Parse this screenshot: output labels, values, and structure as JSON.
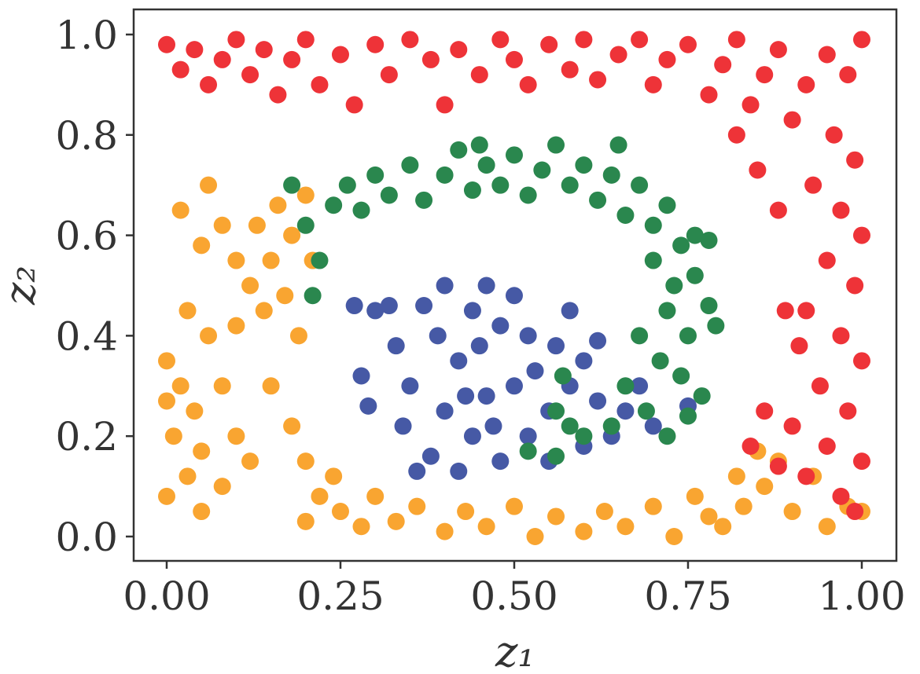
{
  "chart_data": {
    "type": "scatter",
    "xlabel": "z₁",
    "ylabel": "z₂",
    "xlim": [
      -0.0475,
      1.0498
    ],
    "ylim": [
      -0.0485,
      1.05
    ],
    "xticks": [
      {
        "value": 0,
        "label": "0.00"
      },
      {
        "value": 0.25,
        "label": "0.25"
      },
      {
        "value": 0.5,
        "label": "0.50"
      },
      {
        "value": 0.75,
        "label": "0.75"
      },
      {
        "value": 1,
        "label": "1.00"
      }
    ],
    "yticks": [
      {
        "value": 0,
        "label": "0.0"
      },
      0.2,
      0.4,
      0.6,
      0.8,
      {
        "value": 1,
        "label": "1.0"
      }
    ],
    "grid": false,
    "series": [
      {
        "color": "#f9a531",
        "x": [
          0,
          0.02,
          0.01,
          0.03,
          0,
          0.05,
          0.04,
          0.06,
          0.03,
          0.05,
          0.02,
          0.06,
          0.08,
          0.1,
          0.12,
          0.14,
          0.1,
          0.13,
          0.16,
          0.18,
          0.2,
          0.15,
          0.17,
          0.08,
          0.1,
          0.12,
          0.08,
          0.15,
          0.18,
          0.2,
          0.22,
          0.25,
          0.28,
          0.3,
          0.33,
          0.36,
          0.4,
          0.43,
          0.46,
          0.5,
          0.53,
          0.56,
          0.6,
          0.63,
          0.66,
          0.7,
          0.73,
          0.76,
          0.8,
          0.83,
          0.86,
          0.88,
          0.9,
          0.93,
          0.95,
          0.98,
          1,
          0.82,
          0.85,
          0.78,
          0.2,
          0.24,
          0.21,
          0.19,
          0.05,
          0
        ],
        "values": [
          0.35,
          0.3,
          0.2,
          0.12,
          0.08,
          0.05,
          0.25,
          0.4,
          0.45,
          0.58,
          0.65,
          0.7,
          0.62,
          0.55,
          0.5,
          0.45,
          0.42,
          0.62,
          0.66,
          0.6,
          0.68,
          0.55,
          0.48,
          0.3,
          0.2,
          0.15,
          0.1,
          0.3,
          0.22,
          0.15,
          0.08,
          0.05,
          0.02,
          0.08,
          0.03,
          0.06,
          0.01,
          0.05,
          0.02,
          0.06,
          0,
          0.04,
          0.01,
          0.05,
          0.02,
          0.06,
          0,
          0.08,
          0.02,
          0.06,
          0.1,
          0.15,
          0.05,
          0.12,
          0.02,
          0.06,
          0.05,
          0.12,
          0.17,
          0.04,
          0.03,
          0.12,
          0.55,
          0.4,
          0.17,
          0.27
        ]
      },
      {
        "color": "#4659a5",
        "x": [
          0.3,
          0.33,
          0.35,
          0.34,
          0.38,
          0.4,
          0.42,
          0.44,
          0.46,
          0.4,
          0.37,
          0.48,
          0.5,
          0.52,
          0.5,
          0.46,
          0.44,
          0.48,
          0.52,
          0.55,
          0.58,
          0.56,
          0.6,
          0.62,
          0.6,
          0.64,
          0.66,
          0.68,
          0.7,
          0.55,
          0.42,
          0.36,
          0.28,
          0.29,
          0.32,
          0.45,
          0.53,
          0.43,
          0.39,
          0.47,
          0.75,
          0.62,
          0.27,
          0.58
        ],
        "values": [
          0.45,
          0.38,
          0.3,
          0.22,
          0.16,
          0.25,
          0.35,
          0.45,
          0.5,
          0.5,
          0.46,
          0.42,
          0.48,
          0.4,
          0.3,
          0.28,
          0.2,
          0.15,
          0.2,
          0.25,
          0.3,
          0.38,
          0.35,
          0.27,
          0.18,
          0.2,
          0.25,
          0.3,
          0.22,
          0.15,
          0.13,
          0.13,
          0.32,
          0.26,
          0.46,
          0.38,
          0.33,
          0.28,
          0.4,
          0.22,
          0.26,
          0.39,
          0.46,
          0.45
        ]
      },
      {
        "color": "#2a874e",
        "x": [
          0.18,
          0.2,
          0.22,
          0.21,
          0.24,
          0.26,
          0.28,
          0.3,
          0.32,
          0.35,
          0.37,
          0.4,
          0.42,
          0.44,
          0.46,
          0.48,
          0.5,
          0.52,
          0.54,
          0.56,
          0.58,
          0.6,
          0.62,
          0.64,
          0.66,
          0.68,
          0.7,
          0.72,
          0.74,
          0.76,
          0.7,
          0.73,
          0.76,
          0.78,
          0.72,
          0.75,
          0.79,
          0.68,
          0.71,
          0.74,
          0.77,
          0.66,
          0.69,
          0.72,
          0.75,
          0.64,
          0.56,
          0.58,
          0.6,
          0.56,
          0.52,
          0.57,
          0.78,
          0.65,
          0.45
        ],
        "values": [
          0.7,
          0.62,
          0.55,
          0.48,
          0.66,
          0.7,
          0.65,
          0.72,
          0.68,
          0.74,
          0.67,
          0.72,
          0.77,
          0.69,
          0.74,
          0.7,
          0.76,
          0.68,
          0.73,
          0.78,
          0.7,
          0.74,
          0.67,
          0.72,
          0.64,
          0.7,
          0.62,
          0.66,
          0.58,
          0.6,
          0.55,
          0.5,
          0.52,
          0.46,
          0.45,
          0.4,
          0.42,
          0.4,
          0.35,
          0.32,
          0.28,
          0.3,
          0.25,
          0.2,
          0.24,
          0.22,
          0.25,
          0.22,
          0.2,
          0.16,
          0.17,
          0.32,
          0.59,
          0.78,
          0.78
        ]
      },
      {
        "color": "#ee3338",
        "x": [
          0,
          0.02,
          0.04,
          0.06,
          0.08,
          0.1,
          0.12,
          0.14,
          0.16,
          0.18,
          0.2,
          0.22,
          0.25,
          0.27,
          0.3,
          0.32,
          0.35,
          0.38,
          0.4,
          0.42,
          0.45,
          0.48,
          0.5,
          0.52,
          0.55,
          0.58,
          0.6,
          0.62,
          0.65,
          0.68,
          0.7,
          0.72,
          0.75,
          0.78,
          0.8,
          0.82,
          0.84,
          0.86,
          0.88,
          0.9,
          0.92,
          0.95,
          0.98,
          1,
          0.96,
          0.99,
          0.93,
          0.97,
          1,
          0.95,
          0.99,
          0.92,
          0.97,
          1,
          0.94,
          0.98,
          0.9,
          0.86,
          0.95,
          1,
          0.92,
          0.97,
          0.99,
          0.88,
          0.84,
          0.91,
          0.88,
          0.85,
          0.82,
          0.89
        ],
        "values": [
          0.98,
          0.93,
          0.97,
          0.9,
          0.95,
          0.99,
          0.92,
          0.97,
          0.88,
          0.95,
          0.99,
          0.9,
          0.96,
          0.86,
          0.98,
          0.92,
          0.99,
          0.95,
          0.86,
          0.97,
          0.92,
          0.99,
          0.95,
          0.9,
          0.98,
          0.93,
          0.99,
          0.91,
          0.96,
          0.99,
          0.9,
          0.95,
          0.98,
          0.88,
          0.94,
          0.99,
          0.86,
          0.92,
          0.97,
          0.83,
          0.9,
          0.96,
          0.92,
          0.99,
          0.8,
          0.75,
          0.7,
          0.65,
          0.6,
          0.55,
          0.5,
          0.45,
          0.4,
          0.35,
          0.3,
          0.25,
          0.22,
          0.25,
          0.18,
          0.15,
          0.12,
          0.08,
          0.05,
          0.14,
          0.18,
          0.38,
          0.65,
          0.73,
          0.8,
          0.45
        ]
      }
    ]
  }
}
